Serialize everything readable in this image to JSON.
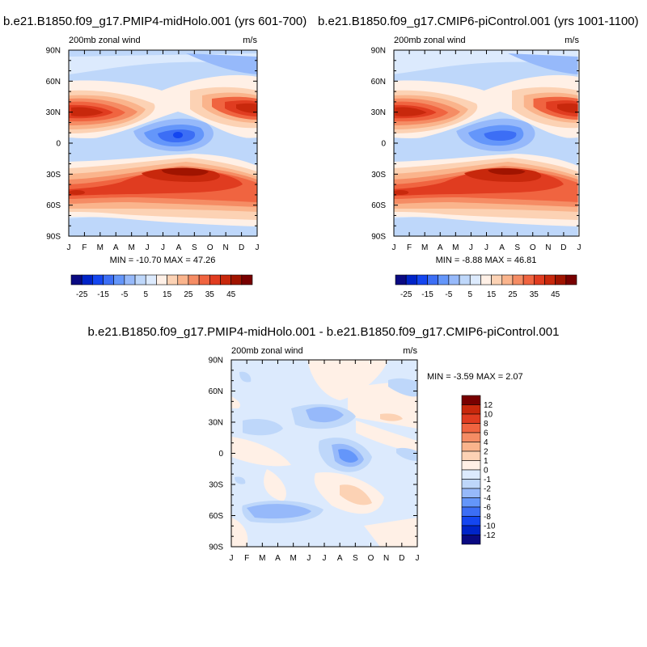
{
  "figure": {
    "top_left_title": "b.e21.B1850.f09_g17.PMIP4-midHolo.001 (yrs 601-700)",
    "top_right_title": "b.e21.B1850.f09_g17.CMIP6-piControl.001 (yrs 1001-1100)",
    "bottom_title": "b.e21.B1850.f09_g17.PMIP4-midHolo.001 - b.e21.B1850.f09_g17.CMIP6-piControl.001"
  },
  "chart_data": [
    {
      "id": "midholo",
      "type": "heatmap",
      "title": "200mb zonal wind",
      "units": "m/s",
      "x_tick_labels": [
        "J",
        "F",
        "M",
        "A",
        "M",
        "J",
        "J",
        "A",
        "S",
        "O",
        "N",
        "D",
        "J"
      ],
      "y_tick_labels": [
        "90N",
        "60N",
        "30N",
        "0",
        "30S",
        "60S",
        "90S"
      ],
      "min_max_label": "MIN = -10.70 MAX =  47.26",
      "colorbar_labels": [
        "-25",
        "-15",
        "-5",
        "5",
        "15",
        "25",
        "35",
        "45"
      ],
      "levels": [
        -30,
        -25,
        -20,
        -15,
        -10,
        -5,
        0,
        5,
        10,
        15,
        20,
        25,
        30,
        35,
        40,
        45,
        50
      ],
      "colors": [
        "#0a0a82",
        "#0024c8",
        "#1446f0",
        "#3c6ef5",
        "#6496fa",
        "#96b9fa",
        "#bed7fa",
        "#dceafd",
        "#fff0e6",
        "#fcd2b4",
        "#fab48c",
        "#f58c64",
        "#f06440",
        "#e03c20",
        "#c8280c",
        "#a01400",
        "#780000"
      ]
    },
    {
      "id": "picontrol",
      "type": "heatmap",
      "title": "200mb zonal wind",
      "units": "m/s",
      "x_tick_labels": [
        "J",
        "F",
        "M",
        "A",
        "M",
        "J",
        "J",
        "A",
        "S",
        "O",
        "N",
        "D",
        "J"
      ],
      "y_tick_labels": [
        "90N",
        "60N",
        "30N",
        "0",
        "30S",
        "60S",
        "90S"
      ],
      "min_max_label": "MIN =  -8.88 MAX =  46.81",
      "colorbar_labels": [
        "-25",
        "-15",
        "-5",
        "5",
        "15",
        "25",
        "35",
        "45"
      ],
      "levels": [
        -30,
        -25,
        -20,
        -15,
        -10,
        -5,
        0,
        5,
        10,
        15,
        20,
        25,
        30,
        35,
        40,
        45,
        50
      ],
      "colors": [
        "#0a0a82",
        "#0024c8",
        "#1446f0",
        "#3c6ef5",
        "#6496fa",
        "#96b9fa",
        "#bed7fa",
        "#dceafd",
        "#fff0e6",
        "#fcd2b4",
        "#fab48c",
        "#f58c64",
        "#f06440",
        "#e03c20",
        "#c8280c",
        "#a01400",
        "#780000"
      ]
    },
    {
      "id": "difference",
      "type": "heatmap",
      "title": "200mb zonal wind",
      "units": "m/s",
      "x_tick_labels": [
        "J",
        "F",
        "M",
        "A",
        "M",
        "J",
        "J",
        "A",
        "S",
        "O",
        "N",
        "D",
        "J"
      ],
      "y_tick_labels": [
        "90N",
        "60N",
        "30N",
        "0",
        "30S",
        "60S",
        "90S"
      ],
      "min_max_label": "MIN =  -3.59 MAX =   2.07",
      "colorbar_labels": [
        "12",
        "10",
        "8",
        "6",
        "4",
        "2",
        "1",
        "0",
        "-1",
        "-2",
        "-4",
        "-6",
        "-8",
        "-10",
        "-12"
      ],
      "colors": [
        "#780000",
        "#c8280c",
        "#e03c20",
        "#f06440",
        "#f58c64",
        "#fab48c",
        "#fcd2b4",
        "#fff0e6",
        "#dceafd",
        "#bed7fa",
        "#96b9fa",
        "#6496fa",
        "#3c6ef5",
        "#1446f0",
        "#0024c8",
        "#0a0a82"
      ]
    }
  ]
}
